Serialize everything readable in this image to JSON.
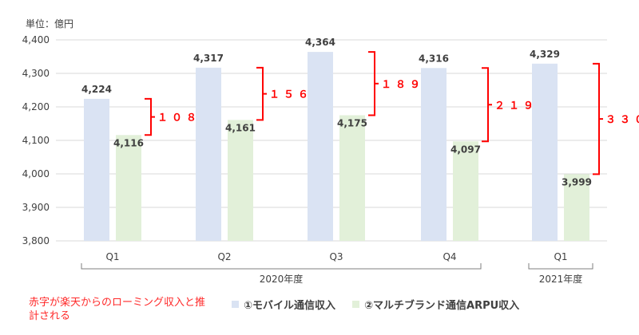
{
  "chart_data": {
    "type": "bar",
    "unit_label": "単位：億円",
    "categories": [
      "Q1",
      "Q2",
      "Q3",
      "Q4",
      "Q1"
    ],
    "groups": [
      {
        "label": "2020年度",
        "categories": [
          "Q1",
          "Q2",
          "Q3",
          "Q4"
        ]
      },
      {
        "label": "2021年度",
        "categories": [
          "Q1"
        ]
      }
    ],
    "series": [
      {
        "name": "①モバイル通信収入",
        "color": "#dae3f3",
        "values": [
          4224,
          4317,
          4364,
          4316,
          4329
        ]
      },
      {
        "name": "②マルチブランド通信ARPU収入",
        "color": "#e2f0d9",
        "values": [
          4116,
          4161,
          4175,
          4097,
          3999
        ]
      }
    ],
    "data_labels": {
      "series1": [
        "4,224",
        "4,317",
        "4,364",
        "4,316",
        "4,329"
      ],
      "series2": [
        "4,116",
        "4,161",
        "4,175",
        "4,097",
        "3,999"
      ]
    },
    "differences": [
      "１０８",
      "１５６",
      "１８９",
      "２１９",
      "３３０"
    ],
    "difference_color": "#ff0000",
    "ylim": [
      3800,
      4400
    ],
    "yticks": [
      "3,800",
      "3,900",
      "4,000",
      "4,100",
      "4,200",
      "4,300",
      "4,400"
    ],
    "ytick_values": [
      3800,
      3900,
      4000,
      4100,
      4200,
      4300,
      4400
    ],
    "grid": true,
    "legend_position": "bottom",
    "note": "赤字が楽天からのローミング収入と推計される"
  }
}
